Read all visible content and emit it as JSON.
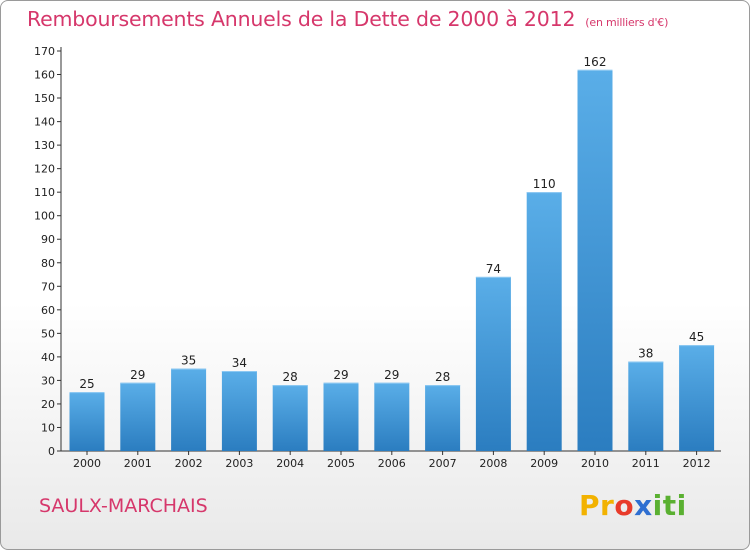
{
  "title": "Remboursements Annuels de la Dette de 2000 à 2012",
  "unit": "(en milliers d'€)",
  "commune": "SAULX-MARCHAIS",
  "logo": {
    "text": "Proxiti"
  },
  "colors": {
    "title": "#d6376b",
    "bar_top": "#5aaee8",
    "bar_bottom": "#2b7dc0"
  },
  "chart_data": {
    "type": "bar",
    "categories": [
      "2000",
      "2001",
      "2002",
      "2003",
      "2004",
      "2005",
      "2006",
      "2007",
      "2008",
      "2009",
      "2010",
      "2011",
      "2012"
    ],
    "values": [
      25,
      29,
      35,
      34,
      28,
      29,
      29,
      28,
      74,
      110,
      162,
      38,
      45
    ],
    "ylim": [
      0,
      170
    ],
    "yticks": [
      0,
      10,
      20,
      30,
      40,
      50,
      60,
      70,
      80,
      90,
      100,
      110,
      120,
      130,
      140,
      150,
      160,
      170
    ],
    "grid": false,
    "legend": "none"
  }
}
